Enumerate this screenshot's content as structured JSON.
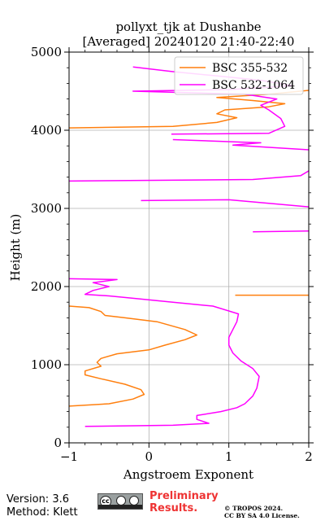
{
  "chart_data": {
    "type": "line",
    "title_line1": "pollyxt_tjk at Dushanbe",
    "title_line2": "[Averaged] 20240120 21:40-22:40",
    "xlabel": "Angstroem Exponent",
    "ylabel": "Height (m)",
    "xlim": [
      -1,
      2
    ],
    "ylim": [
      0,
      5000
    ],
    "xticks": [
      -1,
      0,
      1,
      2
    ],
    "xtick_labels": [
      "−1",
      "0",
      "1",
      "2"
    ],
    "yticks": [
      0,
      1000,
      2000,
      3000,
      4000,
      5000
    ],
    "ytick_labels": [
      "0",
      "1000",
      "2000",
      "3000",
      "4000",
      "5000"
    ],
    "grid": true,
    "legend_position": "top-right",
    "series": [
      {
        "name": "BSC 355-532",
        "color": "#ff7f0e",
        "segments": [
          [
            [
              -1.0,
              470
            ],
            [
              -0.5,
              500
            ],
            [
              -0.2,
              560
            ],
            [
              -0.06,
              620
            ],
            [
              -0.1,
              680
            ],
            [
              -0.3,
              750
            ],
            [
              -0.6,
              820
            ],
            [
              -0.8,
              870
            ],
            [
              -0.8,
              920
            ],
            [
              -0.6,
              980
            ],
            [
              -0.65,
              1030
            ],
            [
              -0.6,
              1080
            ],
            [
              -0.4,
              1140
            ],
            [
              0.0,
              1190
            ],
            [
              0.2,
              1250
            ],
            [
              0.45,
              1320
            ],
            [
              0.6,
              1380
            ],
            [
              0.45,
              1450
            ],
            [
              0.1,
              1550
            ],
            [
              -0.3,
              1600
            ],
            [
              -0.55,
              1630
            ],
            [
              -0.6,
              1680
            ],
            [
              -0.75,
              1730
            ],
            [
              -1.0,
              1750
            ]
          ],
          [
            [
              1.08,
              1890
            ],
            [
              2.0,
              1890
            ]
          ],
          [
            [
              -1.0,
              4030
            ],
            [
              0.3,
              4050
            ],
            [
              0.85,
              4100
            ],
            [
              1.1,
              4160
            ],
            [
              0.85,
              4210
            ],
            [
              0.95,
              4260
            ],
            [
              1.5,
              4300
            ],
            [
              1.7,
              4340
            ],
            [
              1.3,
              4380
            ],
            [
              0.85,
              4420
            ],
            [
              1.5,
              4460
            ],
            [
              2.0,
              4510
            ]
          ]
        ]
      },
      {
        "name": "BSC 532-1064",
        "color": "#ff00ff",
        "segments": [
          [
            [
              -0.8,
              210
            ],
            [
              0.3,
              225
            ],
            [
              0.75,
              250
            ],
            [
              0.6,
              300
            ],
            [
              0.6,
              350
            ],
            [
              0.9,
              400
            ],
            [
              1.1,
              450
            ],
            [
              1.2,
              500
            ],
            [
              1.3,
              600
            ],
            [
              1.35,
              700
            ],
            [
              1.38,
              850
            ],
            [
              1.3,
              950
            ],
            [
              1.15,
              1050
            ],
            [
              1.05,
              1150
            ],
            [
              1.0,
              1250
            ],
            [
              1.0,
              1350
            ],
            [
              1.05,
              1450
            ],
            [
              1.1,
              1550
            ],
            [
              1.12,
              1650
            ],
            [
              0.8,
              1750
            ],
            [
              0.3,
              1800
            ],
            [
              -0.2,
              1850
            ],
            [
              -0.5,
              1880
            ],
            [
              -0.8,
              1900
            ],
            [
              -0.7,
              1950
            ],
            [
              -0.5,
              2000
            ],
            [
              -0.7,
              2050
            ],
            [
              -0.4,
              2090
            ],
            [
              -1.0,
              2100
            ]
          ],
          [
            [
              1.3,
              2700
            ],
            [
              2.0,
              2710
            ]
          ],
          [
            [
              -0.1,
              3100
            ],
            [
              1.0,
              3110
            ],
            [
              2.0,
              3020
            ]
          ],
          [
            [
              -1.0,
              3350
            ],
            [
              1.3,
              3370
            ],
            [
              1.9,
              3420
            ],
            [
              2.0,
              3480
            ]
          ],
          [
            [
              0.3,
              3880
            ],
            [
              1.1,
              3850
            ],
            [
              1.4,
              3840
            ],
            [
              1.05,
              3810
            ],
            [
              2.0,
              3750
            ]
          ],
          [
            [
              0.28,
              3950
            ],
            [
              1.5,
              3960
            ],
            [
              1.7,
              4050
            ],
            [
              1.65,
              4150
            ],
            [
              1.5,
              4260
            ],
            [
              1.4,
              4320
            ],
            [
              1.6,
              4400
            ],
            [
              1.2,
              4460
            ],
            [
              -0.2,
              4500
            ],
            [
              1.0,
              4520
            ],
            [
              1.8,
              4570
            ],
            [
              1.4,
              4640
            ],
            [
              0.8,
              4700
            ],
            [
              0.3,
              4750
            ],
            [
              -0.2,
              4810
            ]
          ]
        ]
      }
    ]
  },
  "footer": {
    "version": "Version: 3.6",
    "method": "Method: Klett",
    "preliminary": "Preliminary Results.",
    "copyright_line1": "© TROPOS 2024.",
    "copyright_line2": "CC BY SA 4.0 License."
  }
}
